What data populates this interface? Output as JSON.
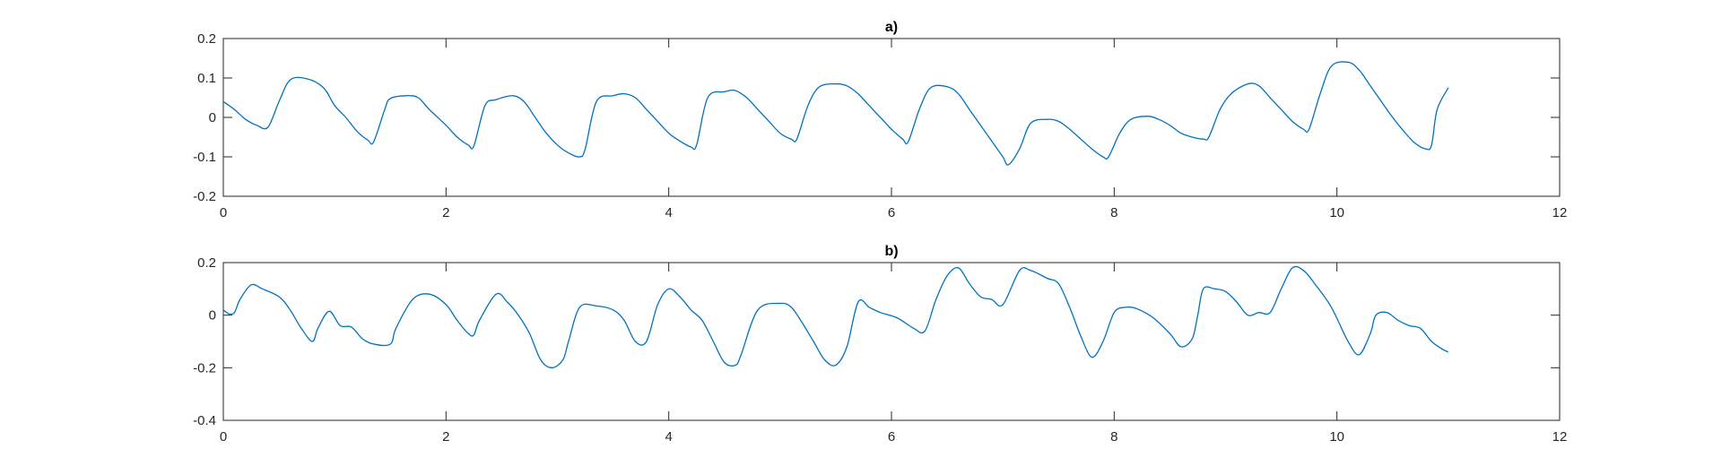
{
  "figure": {
    "background": "#ffffff",
    "axis_color": "#262626",
    "line_color": "#0072BD"
  },
  "chart_data": [
    {
      "type": "line",
      "title": "a)",
      "xlabel": "",
      "ylabel": "",
      "xlim": [
        0,
        12
      ],
      "ylim": [
        -0.2,
        0.2
      ],
      "xticks": [
        0,
        2,
        4,
        6,
        8,
        10,
        12
      ],
      "yticks": [
        -0.2,
        -0.1,
        0,
        0.1,
        0.2
      ],
      "xtick_labels": [
        "0",
        "2",
        "4",
        "6",
        "8",
        "10",
        "12"
      ],
      "ytick_labels": [
        "-0.2",
        "-0.1",
        "0",
        "0.1",
        "0.2"
      ],
      "grid": false,
      "series": [
        {
          "color": "#0072BD",
          "x": [
            0,
            0.1,
            0.2,
            0.3,
            0.4,
            0.5,
            0.6,
            0.75,
            0.9,
            1.0,
            1.1,
            1.2,
            1.3,
            1.35,
            1.45,
            1.5,
            1.65,
            1.75,
            1.85,
            2.0,
            2.1,
            2.2,
            2.25,
            2.35,
            2.45,
            2.6,
            2.7,
            2.8,
            2.9,
            3.0,
            3.1,
            3.2,
            3.25,
            3.35,
            3.5,
            3.6,
            3.7,
            3.8,
            3.9,
            4.0,
            4.1,
            4.2,
            4.25,
            4.35,
            4.5,
            4.6,
            4.7,
            4.8,
            4.9,
            5.0,
            5.1,
            5.15,
            5.25,
            5.35,
            5.5,
            5.6,
            5.7,
            5.8,
            5.9,
            6.0,
            6.1,
            6.15,
            6.25,
            6.35,
            6.5,
            6.6,
            6.7,
            6.8,
            6.9,
            7.0,
            7.05,
            7.15,
            7.25,
            7.4,
            7.5,
            7.6,
            7.7,
            7.8,
            7.9,
            7.95,
            8.05,
            8.15,
            8.3,
            8.4,
            8.5,
            8.6,
            8.7,
            8.8,
            8.85,
            8.95,
            9.05,
            9.2,
            9.3,
            9.4,
            9.5,
            9.6,
            9.7,
            9.75,
            9.85,
            9.95,
            10.1,
            10.2,
            10.3,
            10.4,
            10.5,
            10.6,
            10.7,
            10.8,
            10.85,
            10.9,
            11.0
          ],
          "y": [
            0.04,
            0.02,
            -0.005,
            -0.02,
            -0.025,
            0.04,
            0.095,
            0.098,
            0.075,
            0.03,
            0.0,
            -0.035,
            -0.058,
            -0.062,
            0.02,
            0.048,
            0.055,
            0.05,
            0.02,
            -0.02,
            -0.05,
            -0.07,
            -0.072,
            0.03,
            0.045,
            0.055,
            0.04,
            0.0,
            -0.04,
            -0.07,
            -0.09,
            -0.1,
            -0.08,
            0.04,
            0.055,
            0.06,
            0.05,
            0.02,
            -0.01,
            -0.04,
            -0.06,
            -0.075,
            -0.07,
            0.05,
            0.065,
            0.068,
            0.05,
            0.02,
            -0.01,
            -0.04,
            -0.055,
            -0.055,
            0.03,
            0.077,
            0.085,
            0.08,
            0.06,
            0.03,
            0.0,
            -0.03,
            -0.055,
            -0.062,
            0.02,
            0.075,
            0.078,
            0.06,
            0.02,
            -0.02,
            -0.06,
            -0.1,
            -0.12,
            -0.08,
            -0.015,
            -0.005,
            -0.01,
            -0.03,
            -0.055,
            -0.08,
            -0.1,
            -0.1,
            -0.04,
            -0.005,
            0.003,
            -0.005,
            -0.02,
            -0.04,
            -0.05,
            -0.055,
            -0.05,
            0.02,
            0.06,
            0.085,
            0.08,
            0.05,
            0.02,
            -0.01,
            -0.03,
            -0.03,
            0.06,
            0.13,
            0.14,
            0.12,
            0.08,
            0.04,
            0.0,
            -0.035,
            -0.065,
            -0.08,
            -0.07,
            0.02,
            0.075
          ]
        }
      ]
    },
    {
      "type": "line",
      "title": "b)",
      "xlabel": "",
      "ylabel": "",
      "xlim": [
        0,
        12
      ],
      "ylim": [
        -0.4,
        0.2
      ],
      "xticks": [
        0,
        2,
        4,
        6,
        8,
        10,
        12
      ],
      "yticks": [
        -0.4,
        -0.2,
        0,
        0.2
      ],
      "xtick_labels": [
        "0",
        "2",
        "4",
        "6",
        "8",
        "10",
        "12"
      ],
      "ytick_labels": [
        "-0.4",
        "-0.2",
        "0",
        "0.2"
      ],
      "grid": false,
      "series": [
        {
          "color": "#0072BD",
          "x": [
            0,
            0.05,
            0.1,
            0.15,
            0.25,
            0.35,
            0.5,
            0.6,
            0.7,
            0.8,
            0.85,
            0.95,
            1.05,
            1.15,
            1.25,
            1.35,
            1.5,
            1.55,
            1.7,
            1.85,
            2.0,
            2.1,
            2.2,
            2.25,
            2.3,
            2.45,
            2.55,
            2.65,
            2.75,
            2.85,
            2.95,
            3.05,
            3.1,
            3.2,
            3.35,
            3.5,
            3.6,
            3.7,
            3.8,
            3.9,
            4.0,
            4.1,
            4.2,
            4.3,
            4.4,
            4.5,
            4.6,
            4.65,
            4.8,
            5.0,
            5.1,
            5.2,
            5.3,
            5.4,
            5.5,
            5.6,
            5.7,
            5.8,
            5.9,
            6.05,
            6.2,
            6.3,
            6.4,
            6.5,
            6.6,
            6.7,
            6.8,
            6.9,
            7.0,
            7.15,
            7.25,
            7.4,
            7.5,
            7.6,
            7.7,
            7.8,
            7.9,
            8.0,
            8.1,
            8.2,
            8.35,
            8.5,
            8.6,
            8.7,
            8.75,
            8.8,
            8.9,
            9.0,
            9.1,
            9.2,
            9.3,
            9.4,
            9.5,
            9.6,
            9.7,
            9.8,
            9.95,
            10.1,
            10.2,
            10.3,
            10.35,
            10.45,
            10.55,
            10.65,
            10.75,
            10.85,
            10.95,
            11.0
          ],
          "y": [
            0.02,
            0.005,
            0.01,
            0.06,
            0.115,
            0.1,
            0.07,
            0.02,
            -0.05,
            -0.1,
            -0.05,
            0.015,
            -0.04,
            -0.045,
            -0.09,
            -0.11,
            -0.11,
            -0.05,
            0.06,
            0.08,
            0.04,
            -0.02,
            -0.07,
            -0.075,
            -0.02,
            0.08,
            0.05,
            0.0,
            -0.07,
            -0.17,
            -0.2,
            -0.17,
            -0.1,
            0.03,
            0.035,
            0.02,
            -0.02,
            -0.1,
            -0.1,
            0.04,
            0.1,
            0.07,
            0.02,
            -0.02,
            -0.1,
            -0.18,
            -0.19,
            -0.15,
            0.02,
            0.045,
            0.03,
            -0.03,
            -0.1,
            -0.17,
            -0.19,
            -0.12,
            0.05,
            0.03,
            0.01,
            -0.01,
            -0.05,
            -0.06,
            0.06,
            0.15,
            0.18,
            0.12,
            0.07,
            0.06,
            0.04,
            0.17,
            0.17,
            0.14,
            0.12,
            0.03,
            -0.08,
            -0.16,
            -0.1,
            0.01,
            0.03,
            0.025,
            -0.01,
            -0.07,
            -0.12,
            -0.09,
            0.0,
            0.1,
            0.1,
            0.09,
            0.05,
            0.0,
            0.01,
            0.01,
            0.1,
            0.18,
            0.17,
            0.12,
            0.03,
            -0.1,
            -0.15,
            -0.07,
            0.0,
            0.01,
            -0.02,
            -0.04,
            -0.05,
            -0.1,
            -0.13,
            -0.14
          ]
        }
      ]
    }
  ]
}
